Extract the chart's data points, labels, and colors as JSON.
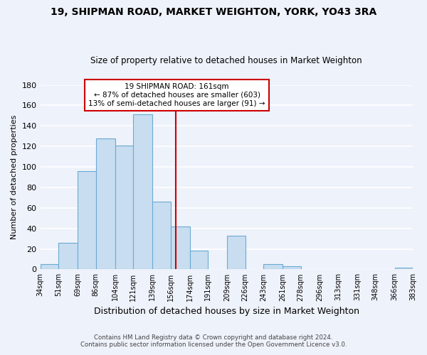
{
  "title": "19, SHIPMAN ROAD, MARKET WEIGHTON, YORK, YO43 3RA",
  "subtitle": "Size of property relative to detached houses in Market Weighton",
  "xlabel": "Distribution of detached houses by size in Market Weighton",
  "ylabel": "Number of detached properties",
  "bar_color": "#c8ddf0",
  "bar_edge_color": "#6aaad4",
  "background_color": "#eef2fa",
  "grid_color": "#ffffff",
  "bin_edges": [
    34,
    51,
    69,
    86,
    104,
    121,
    139,
    156,
    174,
    191,
    209,
    226,
    243,
    261,
    278,
    296,
    313,
    331,
    348,
    366,
    383
  ],
  "bin_labels": [
    "34sqm",
    "51sqm",
    "69sqm",
    "86sqm",
    "104sqm",
    "121sqm",
    "139sqm",
    "156sqm",
    "174sqm",
    "191sqm",
    "209sqm",
    "226sqm",
    "243sqm",
    "261sqm",
    "278sqm",
    "296sqm",
    "313sqm",
    "331sqm",
    "348sqm",
    "366sqm",
    "383sqm"
  ],
  "counts": [
    5,
    26,
    96,
    128,
    121,
    151,
    66,
    42,
    18,
    0,
    33,
    0,
    5,
    3,
    0,
    0,
    0,
    0,
    0,
    2
  ],
  "vline_x": 161,
  "vline_color": "#cc0000",
  "ylim": [
    0,
    180
  ],
  "yticks": [
    0,
    20,
    40,
    60,
    80,
    100,
    120,
    140,
    160,
    180
  ],
  "annotation_title": "19 SHIPMAN ROAD: 161sqm",
  "annotation_line1": "← 87% of detached houses are smaller (603)",
  "annotation_line2": "13% of semi-detached houses are larger (91) →",
  "annotation_box_color": "#ffffff",
  "annotation_box_edge": "#cc0000",
  "footnote1": "Contains HM Land Registry data © Crown copyright and database right 2024.",
  "footnote2": "Contains public sector information licensed under the Open Government Licence v3.0."
}
